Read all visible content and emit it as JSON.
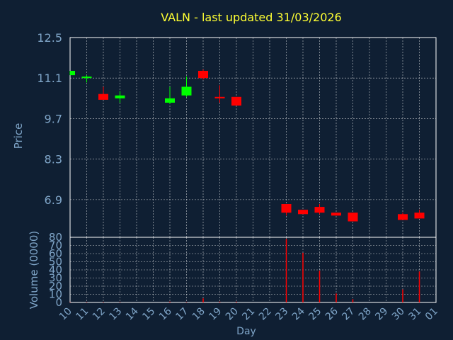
{
  "chart_data": {
    "type": "candlestick",
    "title": "VALN - last updated 31/03/2026",
    "title_color": "#ffff33",
    "background_color": "#0f1f33",
    "axis_text_color": "#7fa5c8",
    "grid_color": "#ffffff",
    "grid": true,
    "up_color": "#00ff00",
    "down_color": "#ff0000",
    "xlabel": "Day",
    "x_ticks": [
      "10",
      "11",
      "12",
      "13",
      "14",
      "15",
      "16",
      "17",
      "18",
      "19",
      "20",
      "21",
      "22",
      "23",
      "24",
      "25",
      "26",
      "27",
      "28",
      "29",
      "30",
      "31",
      "01"
    ],
    "price_panel": {
      "ylabel": "Price",
      "ylim": [
        5.6,
        12.5
      ],
      "y_ticks": [
        "12.5",
        "11.1",
        "9.7",
        "8.3",
        "6.9"
      ],
      "y_tick_values": [
        12.5,
        11.1,
        9.7,
        8.3,
        6.9
      ]
    },
    "volume_panel": {
      "ylabel": "Volume (0000)",
      "ylim": [
        0,
        80
      ],
      "y_ticks": [
        "80",
        "70",
        "60",
        "50",
        "40",
        "30",
        "20",
        "10",
        "0"
      ],
      "y_tick_values": [
        80,
        70,
        60,
        50,
        40,
        30,
        20,
        10,
        0
      ]
    },
    "candles": [
      {
        "day": "10",
        "open": 11.2,
        "high": 11.35,
        "low": 11.2,
        "close": 11.35
      },
      {
        "day": "11",
        "open": 11.1,
        "high": 11.2,
        "low": 10.95,
        "close": 11.15
      },
      {
        "day": "12",
        "open": 10.55,
        "high": 10.8,
        "low": 10.35,
        "close": 10.35
      },
      {
        "day": "13",
        "open": 10.4,
        "high": 10.65,
        "low": 10.25,
        "close": 10.5
      },
      {
        "day": "16",
        "open": 10.25,
        "high": 10.8,
        "low": 10.2,
        "close": 10.4
      },
      {
        "day": "17",
        "open": 10.5,
        "high": 11.15,
        "low": 10.45,
        "close": 10.8
      },
      {
        "day": "18",
        "open": 11.35,
        "high": 11.4,
        "low": 11.05,
        "close": 11.1
      },
      {
        "day": "19",
        "open": 10.45,
        "high": 10.85,
        "low": 10.25,
        "close": 10.4
      },
      {
        "day": "20",
        "open": 10.45,
        "high": 10.45,
        "low": 10.15,
        "close": 10.15
      },
      {
        "day": "23",
        "open": 6.75,
        "high": 6.75,
        "low": 6.35,
        "close": 6.45
      },
      {
        "day": "24",
        "open": 6.55,
        "high": 6.55,
        "low": 6.4,
        "close": 6.4
      },
      {
        "day": "25",
        "open": 6.65,
        "high": 6.75,
        "low": 6.4,
        "close": 6.45
      },
      {
        "day": "26",
        "open": 6.45,
        "high": 6.45,
        "low": 6.35,
        "close": 6.35
      },
      {
        "day": "27",
        "open": 6.45,
        "high": 6.45,
        "low": 6.15,
        "close": 6.15
      },
      {
        "day": "30",
        "open": 6.4,
        "high": 6.45,
        "low": 6.2,
        "close": 6.2
      },
      {
        "day": "31",
        "open": 6.45,
        "high": 6.55,
        "low": 6.25,
        "close": 6.25
      }
    ],
    "volume": [
      {
        "day": "10",
        "value": 0.5
      },
      {
        "day": "11",
        "value": 0.5
      },
      {
        "day": "12",
        "value": 0.5
      },
      {
        "day": "13",
        "value": 0.5
      },
      {
        "day": "16",
        "value": 1
      },
      {
        "day": "17",
        "value": 0.5
      },
      {
        "day": "18",
        "value": 5
      },
      {
        "day": "19",
        "value": 1
      },
      {
        "day": "20",
        "value": 1
      },
      {
        "day": "23",
        "value": 78
      },
      {
        "day": "24",
        "value": 61
      },
      {
        "day": "25",
        "value": 39
      },
      {
        "day": "26",
        "value": 11
      },
      {
        "day": "27",
        "value": 4
      },
      {
        "day": "30",
        "value": 16
      },
      {
        "day": "31",
        "value": 38
      }
    ]
  }
}
